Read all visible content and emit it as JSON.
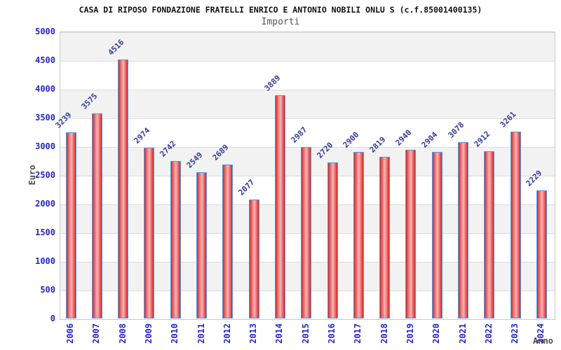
{
  "header": {
    "title": "CASA DI RIPOSO FONDAZIONE FRATELLI ENRICO E ANTONIO NOBILI ONLU S (c.f.85001400135)",
    "subtitle": "Importi"
  },
  "chart_data": {
    "type": "bar",
    "title": "CASA DI RIPOSO FONDAZIONE FRATELLI ENRICO E ANTONIO NOBILI ONLU S (c.f.85001400135)",
    "subtitle": "Importi",
    "xlabel": "Anno",
    "ylabel": "Euro",
    "categories": [
      "2006",
      "2007",
      "2008",
      "2009",
      "2010",
      "2011",
      "2012",
      "2013",
      "2014",
      "2015",
      "2016",
      "2017",
      "2018",
      "2019",
      "2020",
      "2021",
      "2022",
      "2023",
      "2024"
    ],
    "values": [
      3239,
      3575,
      4516,
      2974,
      2742,
      2549,
      2689,
      2077,
      3889,
      2987,
      2720,
      2900,
      2819,
      2940,
      2904,
      3078,
      2912,
      3261,
      2229
    ],
    "ylim": [
      0,
      5000
    ],
    "ytick_step": 500,
    "grid": "horizontal-bands",
    "legend": "none",
    "colors": {
      "bar_fill_edge": "#c92a2a",
      "bar_fill_center": "#f5a3a3",
      "bar_border": "#4f9aea",
      "tick_label": "#2424cc",
      "value_label": "#333a99",
      "axis_title": "#4d4d4d",
      "band_gray": "#f2f2f2",
      "band_white": "#ffffff",
      "frame": "#c9c9c9"
    }
  }
}
